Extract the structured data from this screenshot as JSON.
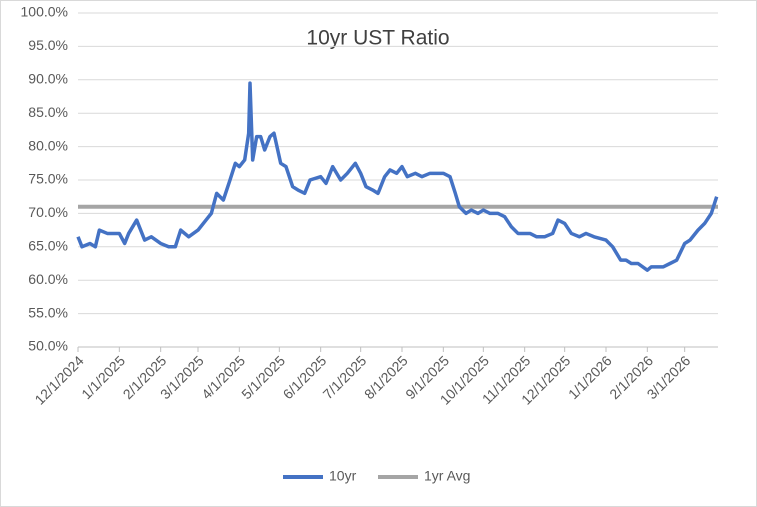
{
  "chart_data": {
    "type": "line",
    "title": "10yr UST Ratio",
    "series": [
      {
        "name": "10yr",
        "color": "#4472c4",
        "x": [
          "2024-12-01",
          "2024-12-04",
          "2024-12-10",
          "2024-12-14",
          "2024-12-17",
          "2024-12-23",
          "2024-12-28",
          "2025-01-01",
          "2025-01-05",
          "2025-01-08",
          "2025-01-14",
          "2025-01-20",
          "2025-01-25",
          "2025-02-01",
          "2025-02-07",
          "2025-02-12",
          "2025-02-16",
          "2025-02-22",
          "2025-03-01",
          "2025-03-07",
          "2025-03-11",
          "2025-03-15",
          "2025-03-20",
          "2025-03-25",
          "2025-03-29",
          "2025-04-01",
          "2025-04-05",
          "2025-04-08",
          "2025-04-09",
          "2025-04-11",
          "2025-04-14",
          "2025-04-17",
          "2025-04-20",
          "2025-04-24",
          "2025-04-27",
          "2025-05-02",
          "2025-05-06",
          "2025-05-11",
          "2025-05-15",
          "2025-05-20",
          "2025-05-24",
          "2025-06-01",
          "2025-06-05",
          "2025-06-10",
          "2025-06-16",
          "2025-06-21",
          "2025-06-27",
          "2025-07-01",
          "2025-07-05",
          "2025-07-10",
          "2025-07-14",
          "2025-07-19",
          "2025-07-23",
          "2025-07-28",
          "2025-08-01",
          "2025-08-05",
          "2025-08-11",
          "2025-08-16",
          "2025-08-22",
          "2025-08-27",
          "2025-09-01",
          "2025-09-06",
          "2025-09-10",
          "2025-09-13",
          "2025-09-18",
          "2025-09-22",
          "2025-09-27",
          "2025-10-01",
          "2025-10-06",
          "2025-10-12",
          "2025-10-17",
          "2025-10-22",
          "2025-10-27",
          "2025-11-01",
          "2025-11-05",
          "2025-11-10",
          "2025-11-16",
          "2025-11-22",
          "2025-11-26",
          "2025-12-01",
          "2025-12-06",
          "2025-12-12",
          "2025-12-17",
          "2025-12-23",
          "2026-01-01",
          "2026-01-06",
          "2026-01-12",
          "2026-01-16",
          "2026-01-20",
          "2026-01-25",
          "2026-02-01",
          "2026-02-04",
          "2026-02-09",
          "2026-02-13",
          "2026-02-18",
          "2026-02-23",
          "2026-03-01",
          "2026-03-05",
          "2026-03-11",
          "2026-03-16",
          "2026-03-21",
          "2026-03-25"
        ],
        "values": [
          66.5,
          65,
          65.5,
          65,
          67.5,
          67,
          67,
          67,
          65.5,
          67,
          69,
          66,
          66.5,
          65.5,
          65,
          65,
          67.5,
          66.5,
          67.5,
          69,
          70,
          73,
          72,
          75,
          77.5,
          77,
          78,
          82,
          89.5,
          78,
          81.5,
          81.5,
          79.5,
          81.5,
          82,
          77.5,
          77,
          74,
          73.5,
          73,
          75,
          75.5,
          74.5,
          77,
          75,
          76,
          77.5,
          76,
          74,
          73.5,
          73,
          75.5,
          76.5,
          76,
          77,
          75.5,
          76,
          75.5,
          76,
          76,
          76,
          75.5,
          73,
          71,
          70,
          70.5,
          70,
          70.5,
          70,
          70,
          69.5,
          68,
          67,
          67,
          67,
          66.5,
          66.5,
          67,
          69,
          68.5,
          67,
          66.5,
          67,
          66.5,
          66,
          65,
          63,
          63,
          62.5,
          62.5,
          61.5,
          62,
          62,
          62,
          62.5,
          63,
          65.5,
          66,
          67.5,
          68.5,
          70,
          72.5
        ]
      },
      {
        "name": "1yr Avg",
        "color": "#a5a5a5",
        "x": [
          "2024-12-01",
          "2026-03-26"
        ],
        "values": [
          71,
          71
        ]
      }
    ],
    "xlim": [
      "2024-12-01",
      "2026-03-26"
    ],
    "xticks": [
      {
        "value": "2024-12-01",
        "label": "12/1/2024"
      },
      {
        "value": "2025-01-01",
        "label": "1/1/2025"
      },
      {
        "value": "2025-02-01",
        "label": "2/1/2025"
      },
      {
        "value": "2025-03-01",
        "label": "3/1/2025"
      },
      {
        "value": "2025-04-01",
        "label": "4/1/2025"
      },
      {
        "value": "2025-05-01",
        "label": "5/1/2025"
      },
      {
        "value": "2025-06-01",
        "label": "6/1/2025"
      },
      {
        "value": "2025-07-01",
        "label": "7/1/2025"
      },
      {
        "value": "2025-08-01",
        "label": "8/1/2025"
      },
      {
        "value": "2025-09-01",
        "label": "9/1/2025"
      },
      {
        "value": "2025-10-01",
        "label": "10/1/2025"
      },
      {
        "value": "2025-11-01",
        "label": "11/1/2025"
      },
      {
        "value": "2025-12-01",
        "label": "12/1/2025"
      },
      {
        "value": "2026-01-01",
        "label": "1/1/2026"
      },
      {
        "value": "2026-02-01",
        "label": "2/1/2026"
      },
      {
        "value": "2026-03-01",
        "label": "3/1/2026"
      }
    ],
    "ylim": [
      50,
      100
    ],
    "yticks": [
      {
        "value": 50,
        "label": "50.0%"
      },
      {
        "value": 55,
        "label": "55.0%"
      },
      {
        "value": 60,
        "label": "60.0%"
      },
      {
        "value": 65,
        "label": "65.0%"
      },
      {
        "value": 70,
        "label": "70.0%"
      },
      {
        "value": 75,
        "label": "75.0%"
      },
      {
        "value": 80,
        "label": "80.0%"
      },
      {
        "value": 85,
        "label": "85.0%"
      },
      {
        "value": 90,
        "label": "90.0%"
      },
      {
        "value": 95,
        "label": "95.0%"
      },
      {
        "value": 100,
        "label": "100.0%"
      }
    ],
    "grid": true
  }
}
